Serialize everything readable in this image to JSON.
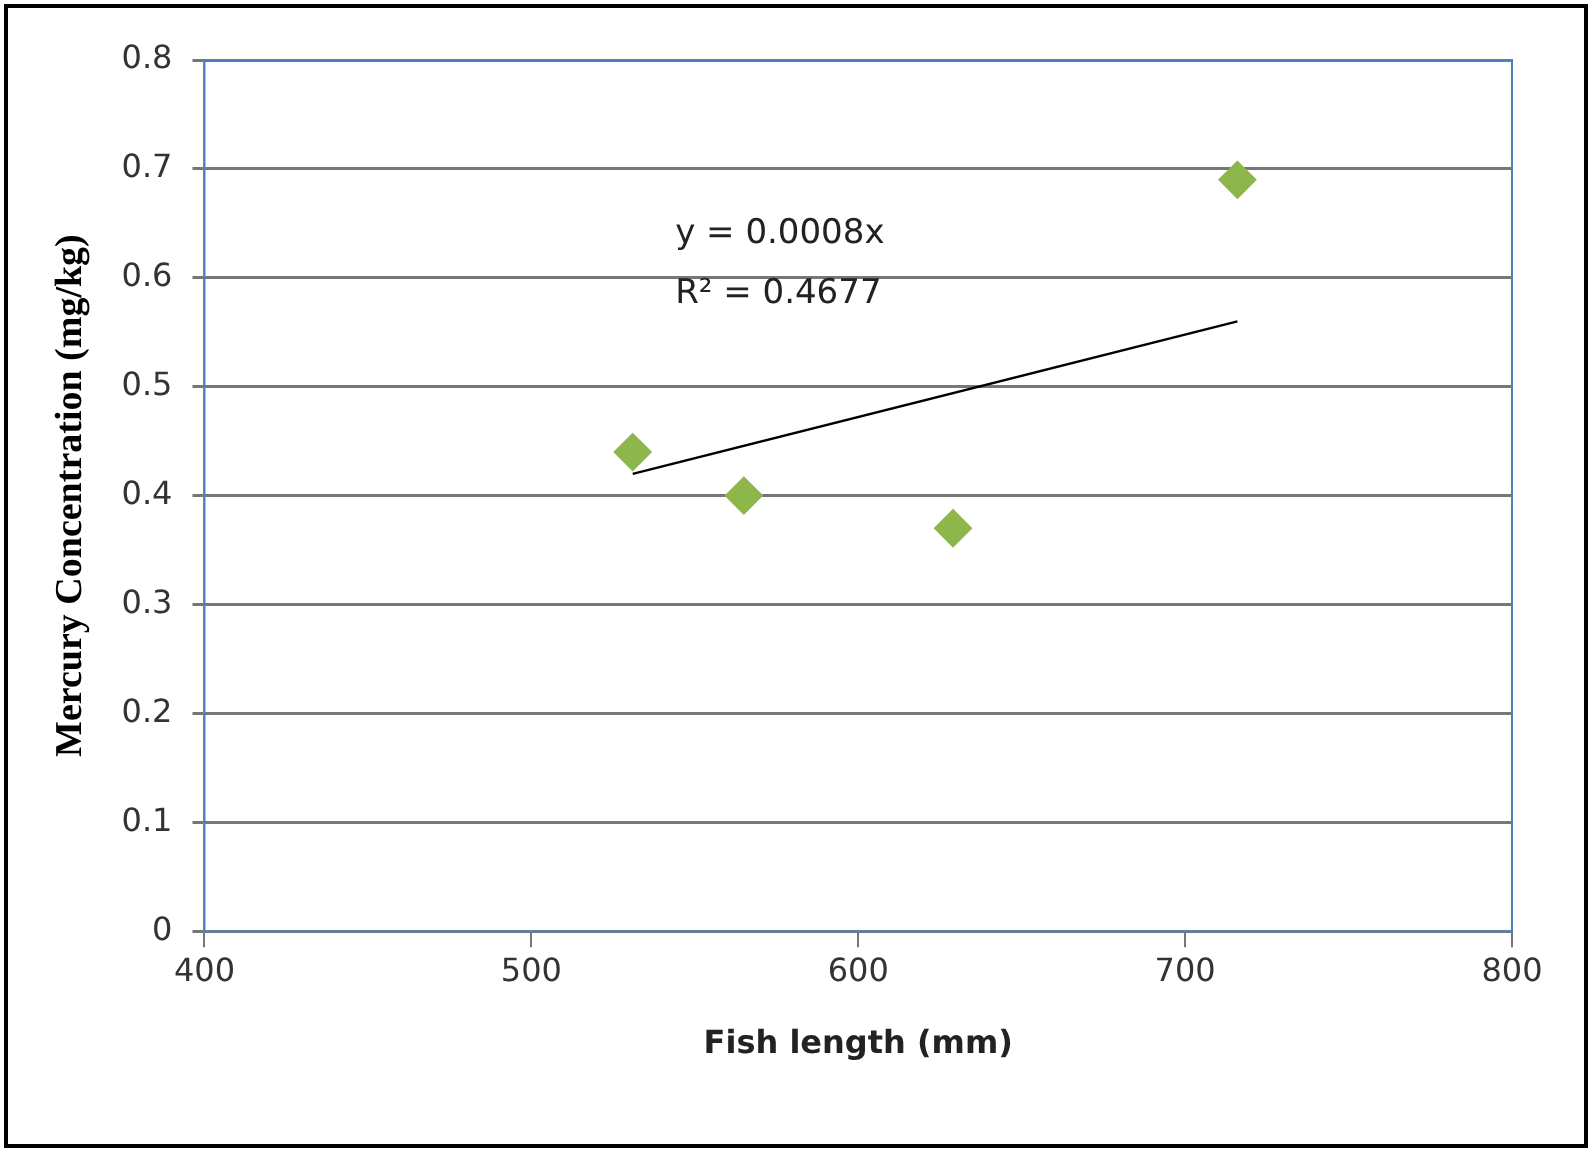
{
  "chart_data": {
    "type": "scatter",
    "xlabel": "Fish length (mm)",
    "ylabel": "Mercury Concentration (mg/kg)",
    "series": [
      {
        "type": "scatter",
        "color": "#8db64b",
        "x": [
          531,
          565,
          629,
          716
        ],
        "values": [
          0.44,
          0.4,
          0.37,
          0.69
        ],
        "marker": "diamond"
      },
      {
        "type": "line",
        "color": "#000000",
        "x": [
          531,
          716
        ],
        "values": [
          0.42,
          0.56
        ],
        "marker": "none"
      }
    ],
    "xlim": [
      400,
      800
    ],
    "xticks": [
      400,
      500,
      600,
      700,
      800
    ],
    "ylim": [
      0,
      0.8
    ],
    "yticks": [
      0,
      0.1,
      0.2,
      0.3,
      0.4,
      0.5,
      0.6,
      0.7,
      0.8
    ],
    "grid": "y",
    "legend": false,
    "annotations": [
      "y = 0.0008x",
      "R² = 0.4677"
    ]
  }
}
